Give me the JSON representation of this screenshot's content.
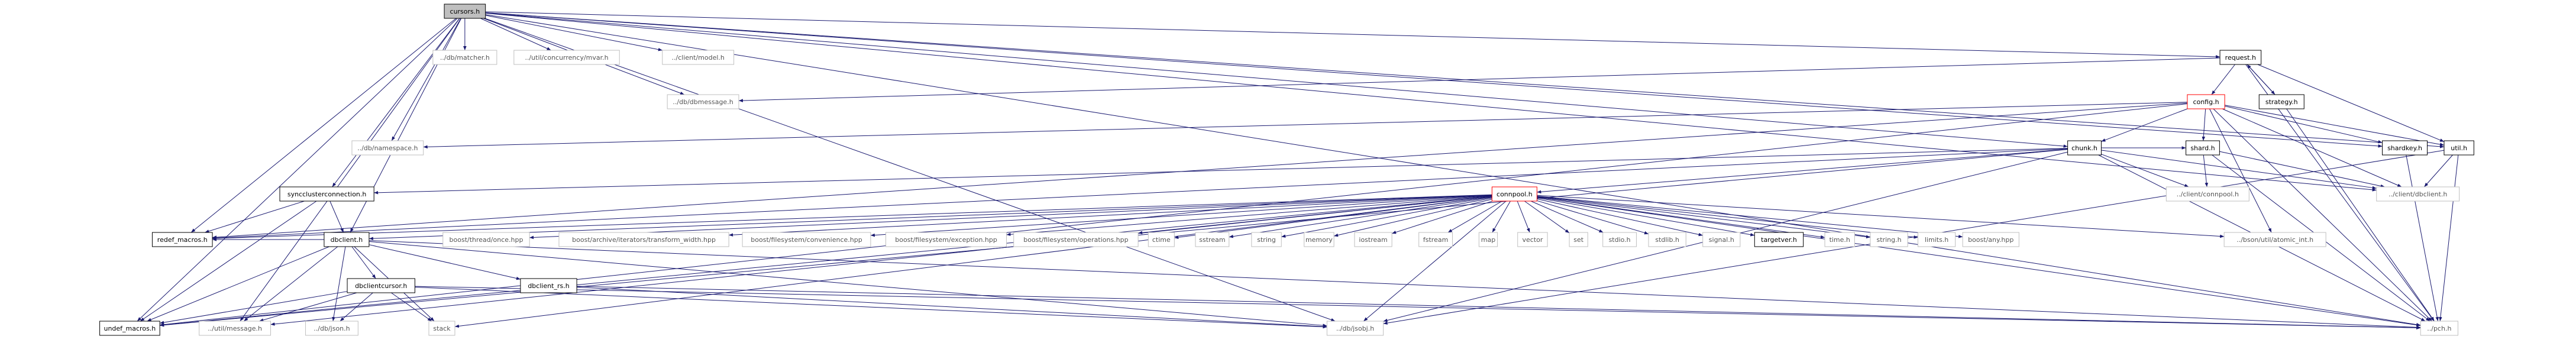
{
  "nodes": [
    {
      "label": "cursors.h"
    },
    {
      "label": "../db/matcher.h"
    },
    {
      "label": "../util/concurrency/mvar.h"
    },
    {
      "label": "../client/model.h"
    },
    {
      "label": "request.h"
    },
    {
      "label": "../db/dbmessage.h"
    },
    {
      "label": "config.h"
    },
    {
      "label": "strategy.h"
    },
    {
      "label": "../db/namespace.h"
    },
    {
      "label": "chunk.h"
    },
    {
      "label": "shard.h"
    },
    {
      "label": "shardkey.h"
    },
    {
      "label": "util.h"
    },
    {
      "label": "syncclusterconnection.h"
    },
    {
      "label": "connpool.h"
    },
    {
      "label": "../client/connpool.h"
    },
    {
      "label": "../client/dbclient.h"
    },
    {
      "label": "redef_macros.h"
    },
    {
      "label": "dbclient.h"
    },
    {
      "label": "boost/thread/once.hpp"
    },
    {
      "label": "boost/archive/iterators/transform_width.hpp"
    },
    {
      "label": "boost/filesystem/convenience.hpp"
    },
    {
      "label": "boost/filesystem/exception.hpp"
    },
    {
      "label": "boost/filesystem/operations.hpp"
    },
    {
      "label": "ctime"
    },
    {
      "label": "sstream"
    },
    {
      "label": "string"
    },
    {
      "label": "memory"
    },
    {
      "label": "iostream"
    },
    {
      "label": "fstream"
    },
    {
      "label": "map"
    },
    {
      "label": "vector"
    },
    {
      "label": "set"
    },
    {
      "label": "stdio.h"
    },
    {
      "label": "stdlib.h"
    },
    {
      "label": "signal.h"
    },
    {
      "label": "targetver.h"
    },
    {
      "label": "time.h"
    },
    {
      "label": "string.h"
    },
    {
      "label": "limits.h"
    },
    {
      "label": "boost/any.hpp"
    },
    {
      "label": "../bson/util/atomic_int.h"
    },
    {
      "label": "dbclientcursor.h"
    },
    {
      "label": "dbclient_rs.h"
    },
    {
      "label": "undef_macros.h"
    },
    {
      "label": "../util/message.h"
    },
    {
      "label": "../db/json.h"
    },
    {
      "label": "stack"
    },
    {
      "label": "../db/jsobj.h"
    },
    {
      "label": "../pch.h"
    }
  ]
}
